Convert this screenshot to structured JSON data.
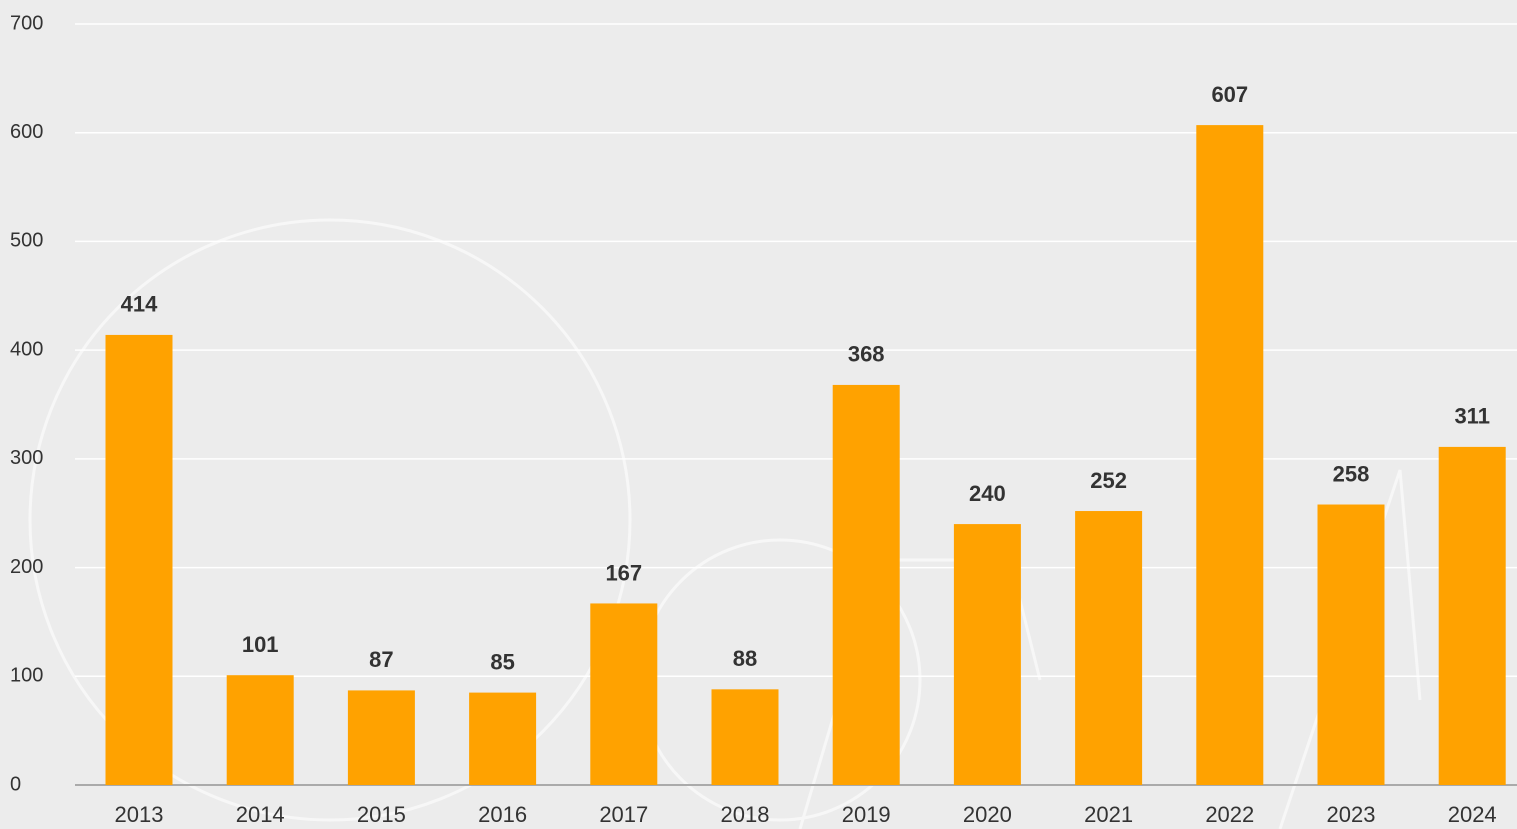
{
  "chart_data": {
    "type": "bar",
    "categories": [
      "2013",
      "2014",
      "2015",
      "2016",
      "2017",
      "2018",
      "2019",
      "2020",
      "2021",
      "2022",
      "2023",
      "2024"
    ],
    "values": [
      414,
      101,
      87,
      85,
      167,
      88,
      368,
      240,
      252,
      607,
      258,
      311
    ],
    "color": "#ffa200",
    "ylim": [
      0,
      700
    ],
    "yticks": [
      0,
      100,
      200,
      300,
      400,
      500,
      600,
      700
    ],
    "grid": true
  }
}
